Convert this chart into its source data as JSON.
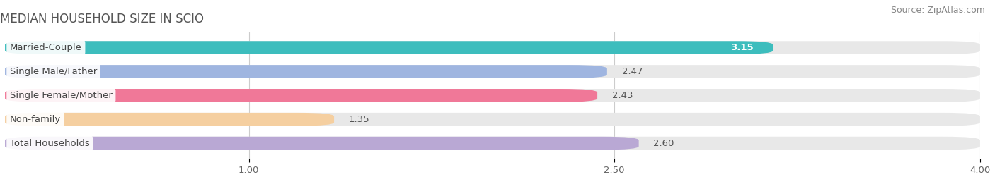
{
  "title": "MEDIAN HOUSEHOLD SIZE IN SCIO",
  "source": "Source: ZipAtlas.com",
  "categories": [
    "Married-Couple",
    "Single Male/Father",
    "Single Female/Mother",
    "Non-family",
    "Total Households"
  ],
  "values": [
    3.15,
    2.47,
    2.43,
    1.35,
    2.6
  ],
  "bar_colors": [
    "#3dbdbd",
    "#9fb5e0",
    "#f07898",
    "#f5cfa0",
    "#b9a8d4"
  ],
  "bar_bg_color": "#e8e8e8",
  "value_inside_color": [
    "#ffffff",
    "#555555",
    "#555555",
    "#555555",
    "#555555"
  ],
  "xlim_min": 0.0,
  "xlim_max": 4.0,
  "xticks": [
    1.0,
    2.5,
    4.0
  ],
  "xtick_labels": [
    "1.00",
    "2.50",
    "4.00"
  ],
  "title_fontsize": 12,
  "source_fontsize": 9,
  "label_fontsize": 9.5,
  "value_fontsize": 9.5,
  "bar_height": 0.55,
  "bar_gap": 0.18,
  "background_color": "#ffffff",
  "label_pill_color": "#ffffff"
}
